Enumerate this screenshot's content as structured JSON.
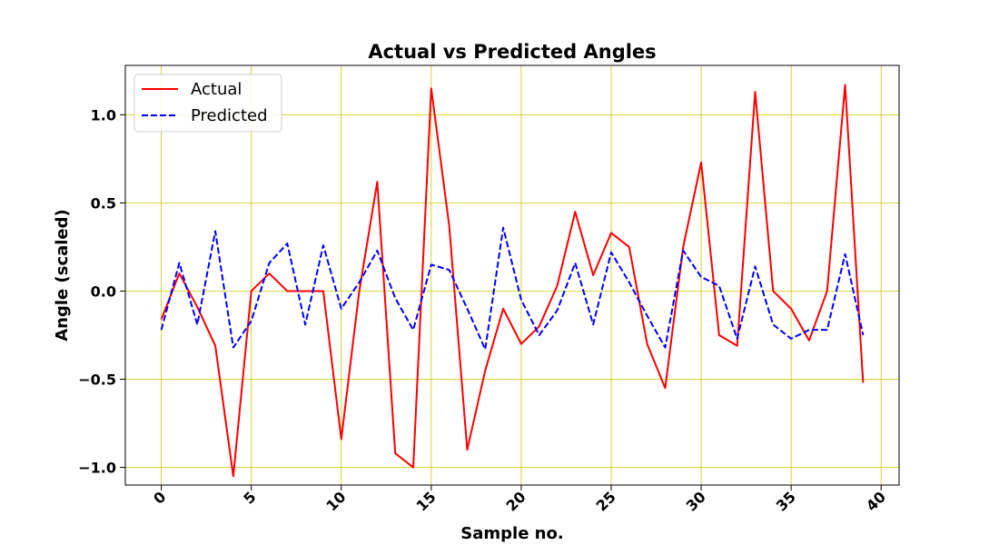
{
  "chart_data": {
    "type": "line",
    "title": "Actual vs Predicted Angles",
    "xlabel": "Sample no.",
    "ylabel": "Angle (scaled)",
    "xlim": [
      -2,
      41
    ],
    "ylim": [
      -1.1,
      1.28
    ],
    "xticks": [
      0,
      5,
      10,
      15,
      20,
      25,
      30,
      35,
      40
    ],
    "xtick_labels": [
      "0",
      "5",
      "10",
      "15",
      "20",
      "25",
      "30",
      "35",
      "40"
    ],
    "yticks": [
      -1.0,
      -0.5,
      0.0,
      0.5,
      1.0
    ],
    "ytick_labels": [
      "−1.0",
      "−0.5",
      "0.0",
      "0.5",
      "1.0"
    ],
    "grid": true,
    "grid_color": "#c8c800",
    "legend_position": "top-left",
    "x": [
      0,
      1,
      2,
      3,
      4,
      5,
      6,
      7,
      8,
      9,
      10,
      11,
      12,
      13,
      14,
      15,
      16,
      17,
      18,
      19,
      20,
      21,
      22,
      23,
      24,
      25,
      26,
      27,
      28,
      29,
      30,
      31,
      32,
      33,
      34,
      35,
      36,
      37,
      38,
      39
    ],
    "series": [
      {
        "name": "Actual",
        "color": "#ff0000",
        "style": "solid",
        "values": [
          -0.16,
          0.1,
          -0.09,
          -0.31,
          -1.05,
          0.0,
          0.1,
          0.0,
          0.0,
          0.0,
          -0.84,
          0.0,
          0.62,
          -0.92,
          -1.0,
          1.15,
          0.37,
          -0.9,
          -0.45,
          -0.1,
          -0.3,
          -0.2,
          0.03,
          0.45,
          0.09,
          0.33,
          0.25,
          -0.3,
          -0.55,
          0.25,
          0.73,
          -0.25,
          -0.31,
          1.13,
          0.0,
          -0.1,
          -0.28,
          0.0,
          1.17,
          -0.52
        ]
      },
      {
        "name": "Predicted",
        "color": "#0000ff",
        "style": "dashed",
        "values": [
          -0.22,
          0.16,
          -0.19,
          0.34,
          -0.32,
          -0.17,
          0.16,
          0.27,
          -0.19,
          0.26,
          -0.1,
          0.05,
          0.23,
          -0.04,
          -0.22,
          0.15,
          0.12,
          -0.1,
          -0.33,
          0.36,
          -0.05,
          -0.25,
          -0.11,
          0.16,
          -0.19,
          0.22,
          0.05,
          -0.14,
          -0.32,
          0.23,
          0.08,
          0.03,
          -0.27,
          0.14,
          -0.19,
          -0.27,
          -0.22,
          -0.22,
          0.21,
          -0.25
        ]
      }
    ]
  }
}
